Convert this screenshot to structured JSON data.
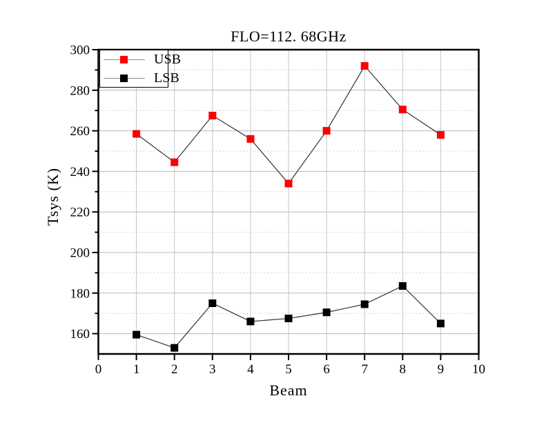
{
  "chart_data": {
    "type": "line",
    "title": "FLO=112. 68GHz",
    "xlabel": "Beam",
    "ylabel": "Tsys (K)",
    "x": [
      1,
      2,
      3,
      4,
      5,
      6,
      7,
      8,
      9
    ],
    "series": [
      {
        "name": "USB",
        "color": "#ff0000",
        "values": [
          258.5,
          244.5,
          267.5,
          256,
          234,
          260,
          292,
          270.5,
          258
        ]
      },
      {
        "name": "LSB",
        "color": "#000000",
        "values": [
          159.5,
          153,
          175,
          166,
          167.5,
          170.5,
          174.5,
          183.5,
          165
        ]
      }
    ],
    "xlim": [
      0,
      10
    ],
    "ylim": [
      150,
      300
    ],
    "x_ticks": [
      0,
      1,
      2,
      3,
      4,
      5,
      6,
      7,
      8,
      9,
      10
    ],
    "y_major_ticks": [
      160,
      180,
      200,
      220,
      240,
      260,
      280,
      300
    ],
    "y_minor_ticks": [
      170,
      190,
      210,
      230,
      250,
      270,
      290
    ],
    "x_gridlines": [
      1,
      2,
      3,
      4,
      5,
      6,
      7,
      8,
      9
    ],
    "y_major_gridlines": [
      160,
      180,
      200,
      220,
      240,
      260,
      280
    ],
    "y_minor_gridlines": [
      170,
      190,
      210,
      230,
      250,
      270,
      290
    ],
    "grid": "on",
    "legend_position": "top-left",
    "marker": "square",
    "colors": {
      "axis": "#000000",
      "series_line": "#303030",
      "grid_major": "#b9b9b9",
      "grid_minor": "#cfcfcf",
      "grid_vertical": "#c4c4c4",
      "legend_line": "#8c8c8c",
      "background": "#ffffff"
    }
  }
}
